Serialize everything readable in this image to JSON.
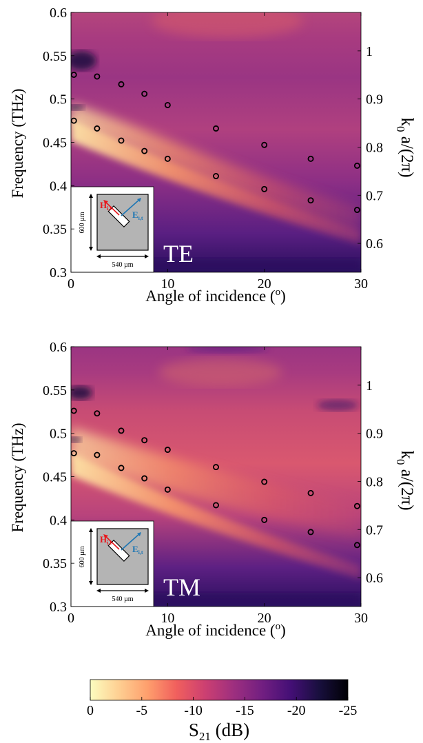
{
  "chart_data": [
    {
      "type": "heatmap",
      "label": "TE",
      "xlabel": "Angle of incidence (",
      "xlabel_sup": "o",
      "xlabel_end": ")",
      "ylabel": "Frequency (THz)",
      "y2label_main": "k",
      "y2label_sub": "0",
      "y2label_rest": " a/(2π)",
      "xlim": [
        0,
        30
      ],
      "ylim": [
        0.3,
        0.6
      ],
      "y2lim": [
        0.54,
        1.08
      ],
      "xticks": [
        "0",
        "10",
        "20",
        "30"
      ],
      "xtick_values": [
        0,
        10,
        20,
        30
      ],
      "yticks": [
        "0.3",
        "0.35",
        "0.4",
        "0.45",
        "0.5",
        "0.55",
        "0.6"
      ],
      "ytick_values": [
        0.3,
        0.35,
        0.4,
        0.45,
        0.5,
        0.55,
        0.6
      ],
      "y2ticks": [
        "0.6",
        "0.7",
        "0.8",
        "0.9",
        "1"
      ],
      "y2tick_values": [
        0.6,
        0.7,
        0.8,
        0.9,
        1.0
      ],
      "markers_upper": {
        "x": [
          0.3,
          2.7,
          5.2,
          7.6,
          10,
          15,
          20,
          24.8,
          29.6
        ],
        "y": [
          0.528,
          0.526,
          0.517,
          0.506,
          0.493,
          0.466,
          0.447,
          0.431,
          0.423
        ]
      },
      "markers_lower": {
        "x": [
          0.3,
          2.7,
          5.2,
          7.6,
          10,
          15,
          20,
          24.8,
          29.6
        ],
        "y": [
          0.475,
          0.466,
          0.452,
          0.44,
          0.431,
          0.411,
          0.396,
          0.383,
          0.372
        ]
      },
      "inset": {
        "h_label": "H",
        "h_sub": "i,t",
        "e_label": "E",
        "e_sub": "i,t",
        "height_label": "600 µm",
        "width_label": "540 µm",
        "h_color": "#e8161b",
        "e_color": "#1f77b4"
      }
    },
    {
      "type": "heatmap",
      "label": "TM",
      "xlabel": "Angle of incidence (",
      "xlabel_sup": "o",
      "xlabel_end": ")",
      "ylabel": "Frequency (THz)",
      "y2label_main": "k",
      "y2label_sub": "0",
      "y2label_rest": " a/(2π)",
      "xlim": [
        0,
        30
      ],
      "ylim": [
        0.3,
        0.6
      ],
      "y2lim": [
        0.54,
        1.08
      ],
      "xticks": [
        "0",
        "10",
        "20",
        "30"
      ],
      "xtick_values": [
        0,
        10,
        20,
        30
      ],
      "yticks": [
        "0.3",
        "0.35",
        "0.4",
        "0.45",
        "0.5",
        "0.55",
        "0.6"
      ],
      "ytick_values": [
        0.3,
        0.35,
        0.4,
        0.45,
        0.5,
        0.55,
        0.6
      ],
      "y2ticks": [
        "0.6",
        "0.7",
        "0.8",
        "0.9",
        "1"
      ],
      "y2tick_values": [
        0.6,
        0.7,
        0.8,
        0.9,
        1.0
      ],
      "markers_upper": {
        "x": [
          0.3,
          2.7,
          5.2,
          7.6,
          10,
          15,
          20,
          24.8,
          29.6
        ],
        "y": [
          0.526,
          0.523,
          0.503,
          0.492,
          0.481,
          0.461,
          0.444,
          0.431,
          0.416
        ]
      },
      "markers_lower": {
        "x": [
          0.3,
          2.7,
          5.2,
          7.6,
          10,
          15,
          20,
          24.8,
          29.6
        ],
        "y": [
          0.477,
          0.475,
          0.46,
          0.448,
          0.435,
          0.417,
          0.4,
          0.386,
          0.371
        ]
      },
      "inset": {
        "h_label": "H",
        "h_sub": "i,t",
        "e_label": "E",
        "e_sub": "i,t",
        "height_label": "600 µm",
        "width_label": "540 µm",
        "h_color": "#e8161b",
        "e_color": "#1f77b4"
      }
    }
  ],
  "colorbar": {
    "ticks": [
      "0",
      "-5",
      "-10",
      "-15",
      "-20",
      "-25"
    ],
    "tick_values": [
      0,
      -5,
      -10,
      -15,
      -20,
      -25
    ],
    "range": [
      0,
      -25
    ],
    "label_main": "S",
    "label_sub": "21",
    "label_rest": " (dB)",
    "colormap": "magma_r",
    "stops": [
      "#fcfdbf",
      "#fecf92",
      "#fe9f6d",
      "#f1605d",
      "#cd4071",
      "#9e2f7f",
      "#721f81",
      "#440f76",
      "#180f3d",
      "#000004"
    ]
  }
}
